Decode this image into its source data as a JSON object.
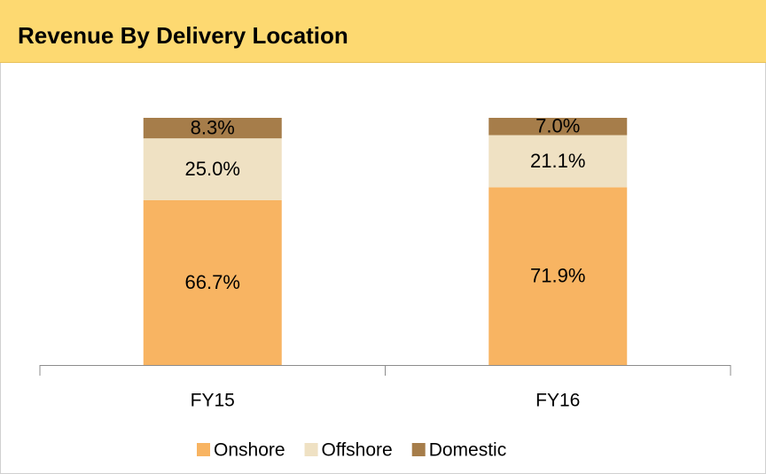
{
  "chart_data": {
    "type": "stacked_bar",
    "title": "Revenue By Delivery Location",
    "categories": [
      "FY15",
      "FY16"
    ],
    "series": [
      {
        "name": "Onshore",
        "color": "#f8b462",
        "values": [
          66.7,
          71.9
        ],
        "value_labels": [
          "66.7%",
          "71.9%"
        ]
      },
      {
        "name": "Offshore",
        "color": "#efe1c3",
        "values": [
          25.0,
          21.1
        ],
        "value_labels": [
          "25.0%",
          "21.1%"
        ]
      },
      {
        "name": "Domestic",
        "color": "#a67d4a",
        "values": [
          8.3,
          7.0
        ],
        "value_labels": [
          "8.3%",
          "7.0%"
        ]
      }
    ],
    "ylim": [
      0,
      100
    ],
    "legend": "bottom"
  }
}
